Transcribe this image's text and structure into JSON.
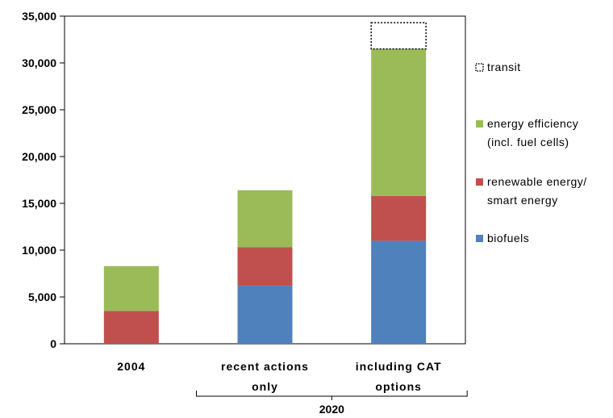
{
  "chart_data": {
    "type": "bar",
    "stacked": true,
    "categories": [
      [
        "2004"
      ],
      [
        "recent actions",
        "only"
      ],
      [
        "including CAT",
        "options"
      ]
    ],
    "group_label": "2020",
    "ylim": [
      0,
      35000
    ],
    "yticks": [
      0,
      5000,
      10000,
      15000,
      20000,
      25000,
      30000,
      35000
    ],
    "ytick_labels": [
      "0",
      "5,000",
      "10,000",
      "15,000",
      "20,000",
      "25,000",
      "30,000",
      "35,000"
    ],
    "series": [
      {
        "name": "biofuels",
        "color": "#4f81bd",
        "values": [
          0,
          6200,
          11000
        ]
      },
      {
        "name": "renewable energy/ smart energy",
        "color": "#c0504d",
        "values": [
          3500,
          4100,
          4800
        ]
      },
      {
        "name": "energy efficiency (incl. fuel cells)",
        "color": "#9bbb59",
        "values": [
          4800,
          6100,
          15700
        ]
      },
      {
        "name": "transit",
        "color": "none",
        "style": "dotted-outline",
        "values": [
          0,
          0,
          2800
        ]
      }
    ],
    "legend": {
      "placement": "right",
      "entries": [
        {
          "lines": [
            "transit"
          ],
          "color": "none",
          "style": "dotted-outline"
        },
        {
          "lines": [
            "energy efficiency",
            "(incl. fuel cells)"
          ],
          "color": "#9bbb59"
        },
        {
          "lines": [
            "renewable energy/",
            "smart energy"
          ],
          "color": "#c0504d"
        },
        {
          "lines": [
            "biofuels"
          ],
          "color": "#4f81bd"
        }
      ]
    }
  }
}
